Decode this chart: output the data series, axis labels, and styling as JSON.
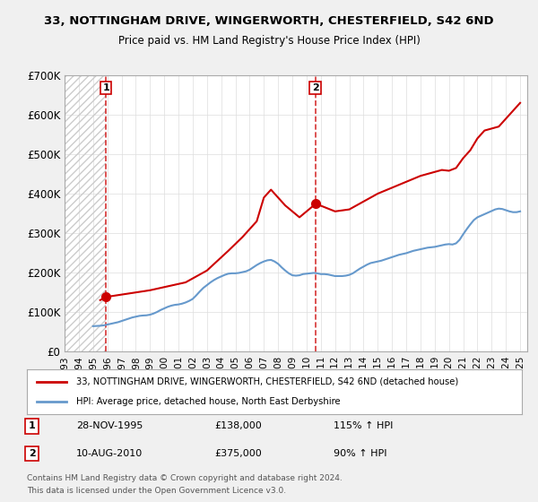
{
  "title1": "33, NOTTINGHAM DRIVE, WINGERWORTH, CHESTERFIELD, S42 6ND",
  "title2": "Price paid vs. HM Land Registry's House Price Index (HPI)",
  "background_color": "#f0f0f0",
  "plot_bg_color": "#ffffff",
  "hatch_color": "#cccccc",
  "ylim": [
    0,
    700000
  ],
  "yticks": [
    0,
    100000,
    200000,
    300000,
    400000,
    500000,
    600000,
    700000
  ],
  "ytick_labels": [
    "£0",
    "£100K",
    "£200K",
    "£300K",
    "£400K",
    "£500K",
    "£600K",
    "£700K"
  ],
  "xlim_start": 1993.0,
  "xlim_end": 2025.5,
  "sale1_year": 1995.91,
  "sale1_price": 138000,
  "sale2_year": 2010.61,
  "sale2_price": 375000,
  "legend_line1": "33, NOTTINGHAM DRIVE, WINGERWORTH, CHESTERFIELD, S42 6ND (detached house)",
  "legend_line2": "HPI: Average price, detached house, North East Derbyshire",
  "footer1": "Contains HM Land Registry data © Crown copyright and database right 2024.",
  "footer2": "This data is licensed under the Open Government Licence v3.0.",
  "annot1_label": "1",
  "annot1_date": "28-NOV-1995",
  "annot1_price": "£138,000",
  "annot1_hpi": "115% ↑ HPI",
  "annot2_label": "2",
  "annot2_date": "10-AUG-2010",
  "annot2_price": "£375,000",
  "annot2_hpi": "90% ↑ HPI",
  "red_line_color": "#cc0000",
  "blue_line_color": "#6699cc",
  "hpi_data_x": [
    1995.0,
    1995.25,
    1995.5,
    1995.75,
    1996.0,
    1996.25,
    1996.5,
    1996.75,
    1997.0,
    1997.25,
    1997.5,
    1997.75,
    1998.0,
    1998.25,
    1998.5,
    1998.75,
    1999.0,
    1999.25,
    1999.5,
    1999.75,
    2000.0,
    2000.25,
    2000.5,
    2000.75,
    2001.0,
    2001.25,
    2001.5,
    2001.75,
    2002.0,
    2002.25,
    2002.5,
    2002.75,
    2003.0,
    2003.25,
    2003.5,
    2003.75,
    2004.0,
    2004.25,
    2004.5,
    2004.75,
    2005.0,
    2005.25,
    2005.5,
    2005.75,
    2006.0,
    2006.25,
    2006.5,
    2006.75,
    2007.0,
    2007.25,
    2007.5,
    2007.75,
    2008.0,
    2008.25,
    2008.5,
    2008.75,
    2009.0,
    2009.25,
    2009.5,
    2009.75,
    2010.0,
    2010.25,
    2010.5,
    2010.75,
    2011.0,
    2011.25,
    2011.5,
    2011.75,
    2012.0,
    2012.25,
    2012.5,
    2012.75,
    2013.0,
    2013.25,
    2013.5,
    2013.75,
    2014.0,
    2014.25,
    2014.5,
    2014.75,
    2015.0,
    2015.25,
    2015.5,
    2015.75,
    2016.0,
    2016.25,
    2016.5,
    2016.75,
    2017.0,
    2017.25,
    2017.5,
    2017.75,
    2018.0,
    2018.25,
    2018.5,
    2018.75,
    2019.0,
    2019.25,
    2019.5,
    2019.75,
    2020.0,
    2020.25,
    2020.5,
    2020.75,
    2021.0,
    2021.25,
    2021.5,
    2021.75,
    2022.0,
    2022.25,
    2022.5,
    2022.75,
    2023.0,
    2023.25,
    2023.5,
    2023.75,
    2024.0,
    2024.25,
    2024.5,
    2024.75,
    2025.0
  ],
  "hpi_data_y": [
    64000,
    64500,
    65000,
    66000,
    68000,
    70000,
    72000,
    74000,
    77000,
    80000,
    83000,
    86000,
    88000,
    90000,
    91000,
    91500,
    93000,
    96000,
    100000,
    105000,
    109000,
    113000,
    116000,
    118000,
    119000,
    121000,
    124000,
    128000,
    133000,
    142000,
    152000,
    161000,
    168000,
    175000,
    181000,
    186000,
    190000,
    194000,
    197000,
    198000,
    198000,
    199000,
    201000,
    203000,
    207000,
    213000,
    219000,
    224000,
    228000,
    231000,
    232000,
    228000,
    222000,
    213000,
    205000,
    198000,
    193000,
    192000,
    193000,
    196000,
    197000,
    198000,
    199000,
    198000,
    196000,
    196000,
    195000,
    193000,
    191000,
    191000,
    191000,
    192000,
    194000,
    198000,
    204000,
    210000,
    215000,
    220000,
    224000,
    226000,
    228000,
    230000,
    233000,
    236000,
    239000,
    242000,
    245000,
    247000,
    249000,
    252000,
    255000,
    257000,
    259000,
    261000,
    263000,
    264000,
    265000,
    267000,
    269000,
    271000,
    272000,
    271000,
    274000,
    283000,
    297000,
    310000,
    322000,
    333000,
    340000,
    344000,
    348000,
    352000,
    356000,
    360000,
    362000,
    361000,
    358000,
    355000,
    353000,
    353000,
    355000
  ],
  "price_data_x": [
    1995.5,
    1995.91,
    1999.0,
    2001.5,
    2003.0,
    2004.5,
    2005.5,
    2006.5,
    2007.0,
    2007.5,
    2008.5,
    2009.5,
    2010.5,
    2010.61,
    2012.0,
    2013.0,
    2014.0,
    2015.0,
    2016.0,
    2017.0,
    2018.0,
    2018.5,
    2019.0,
    2019.5,
    2020.0,
    2020.5,
    2021.0,
    2021.5,
    2022.0,
    2022.5,
    2023.0,
    2023.5,
    2024.0,
    2024.5,
    2025.0
  ],
  "price_data_y": [
    130000,
    138000,
    155000,
    175000,
    205000,
    255000,
    290000,
    330000,
    390000,
    410000,
    370000,
    340000,
    370000,
    375000,
    355000,
    360000,
    380000,
    400000,
    415000,
    430000,
    445000,
    450000,
    455000,
    460000,
    458000,
    465000,
    490000,
    510000,
    540000,
    560000,
    565000,
    570000,
    590000,
    610000,
    630000
  ]
}
